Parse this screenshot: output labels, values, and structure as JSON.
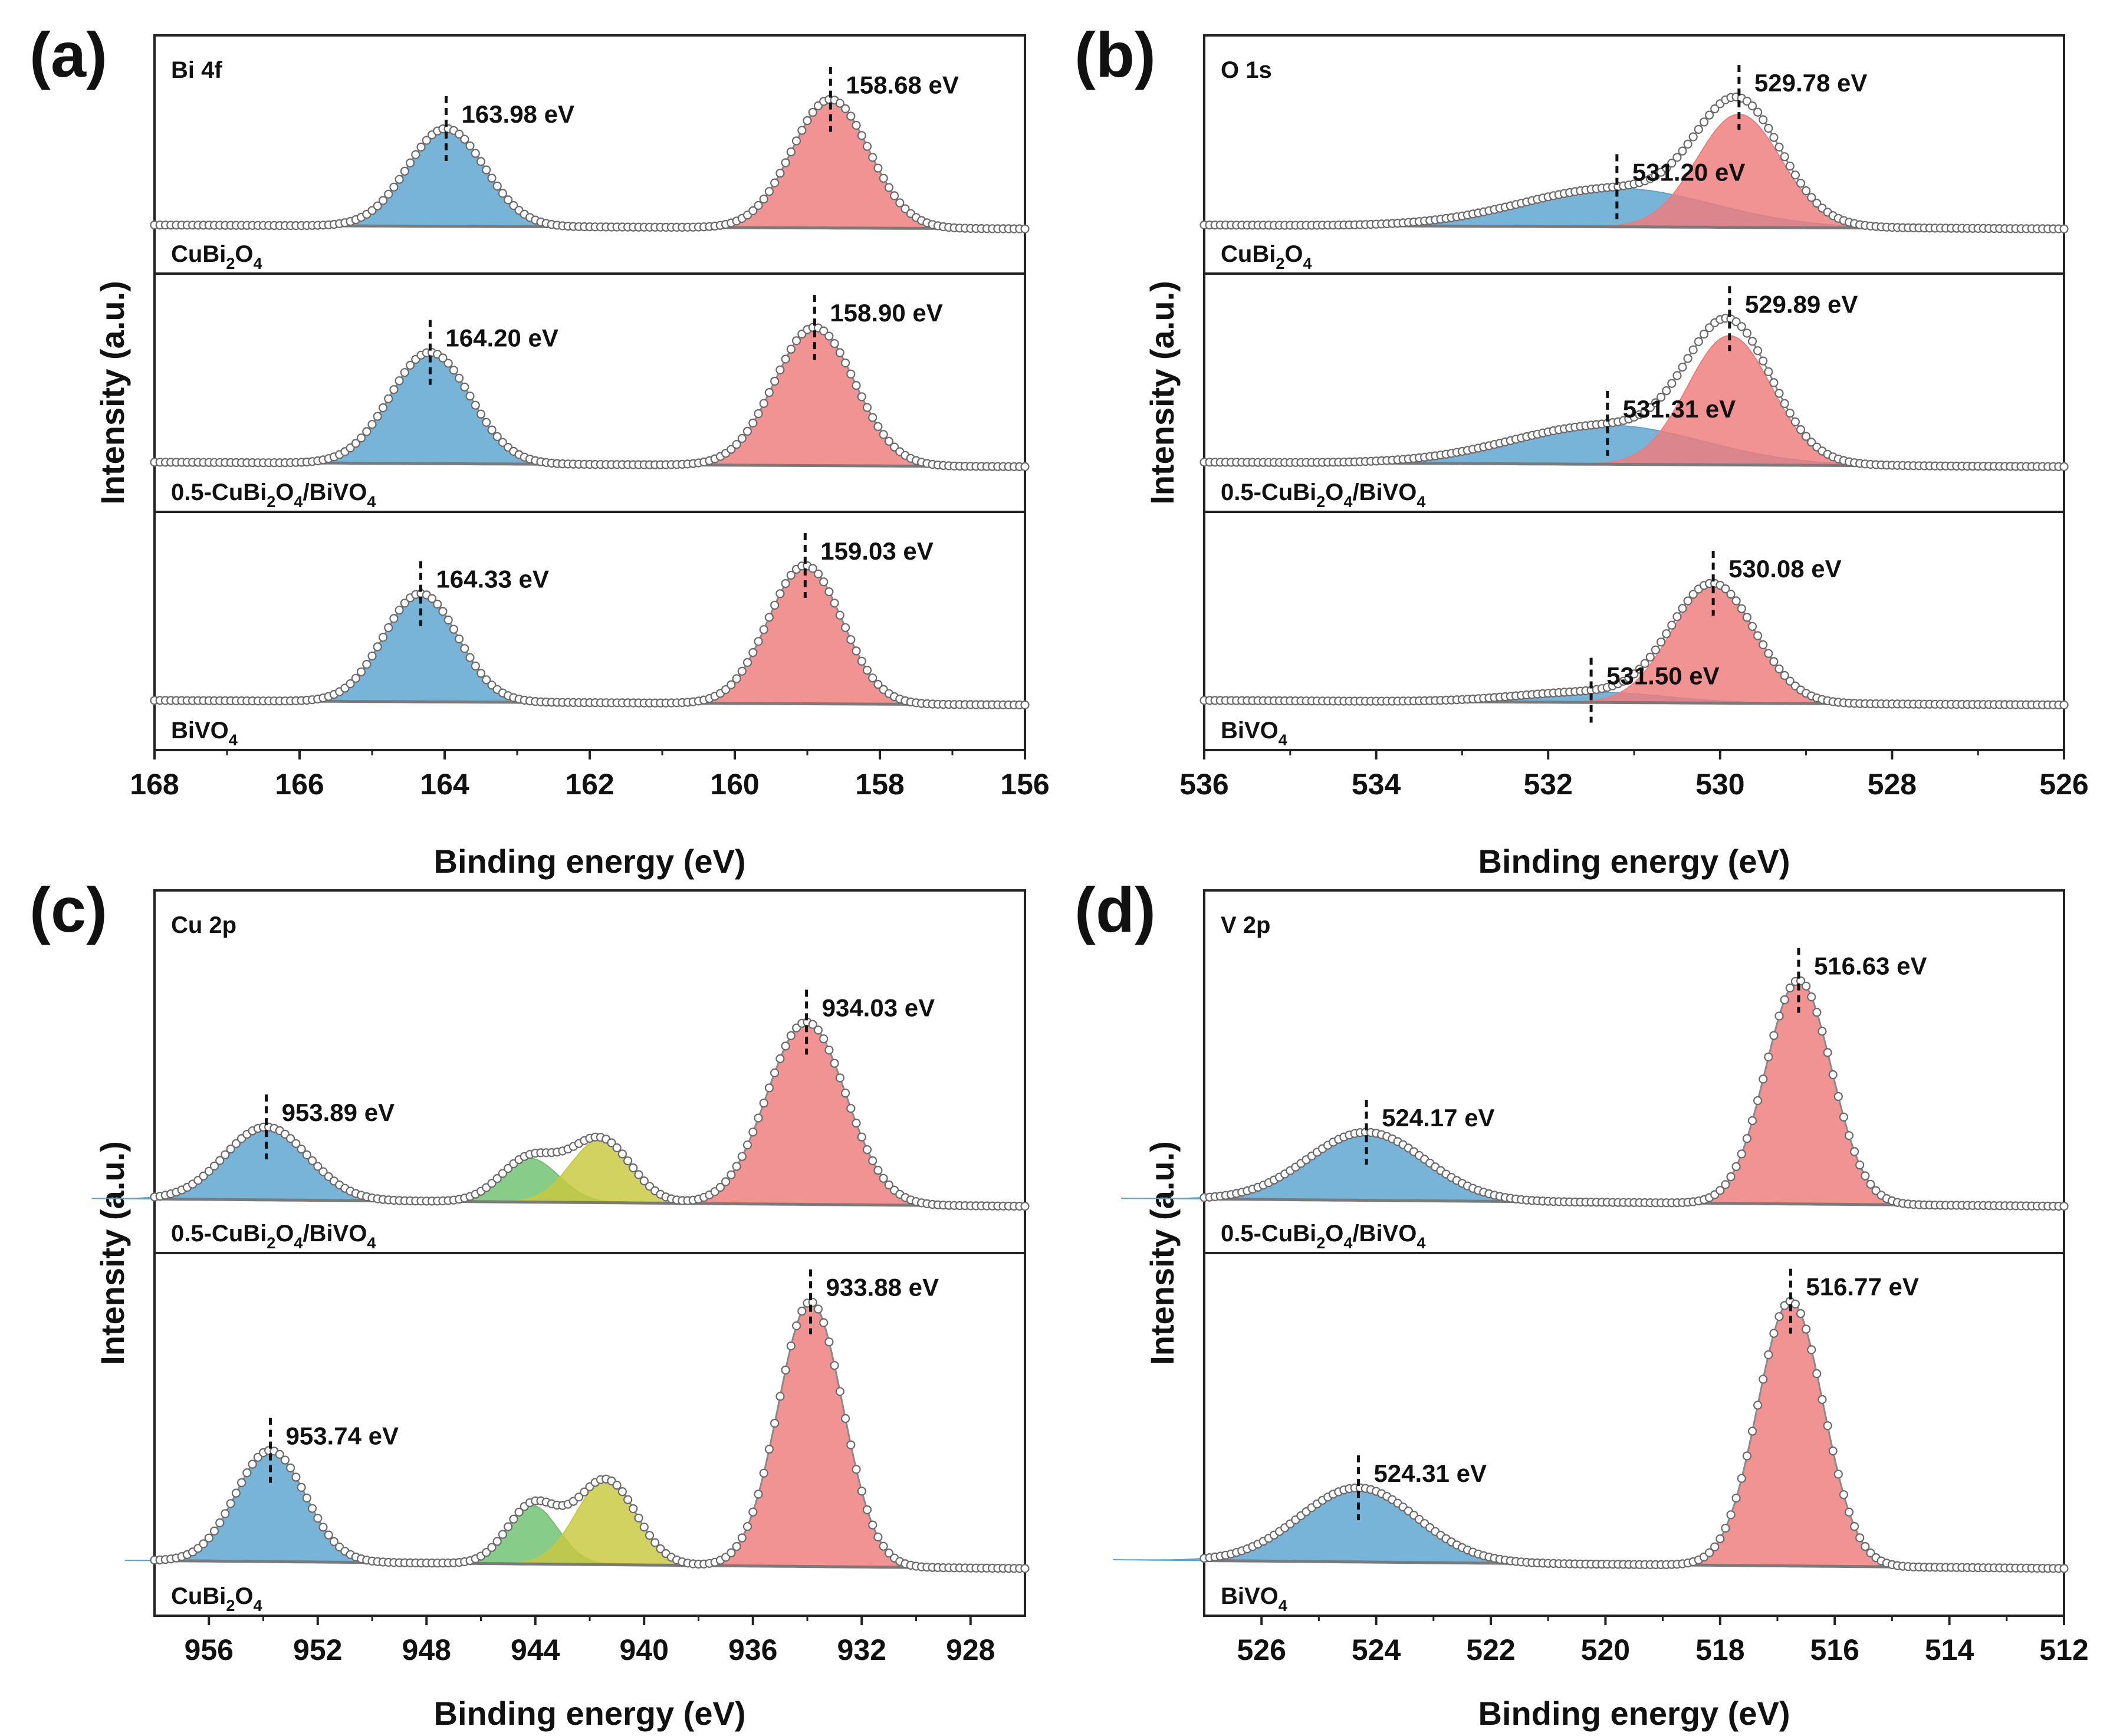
{
  "chart_data": [
    {
      "type": "line",
      "id": "a",
      "panel_label": "(a)",
      "title": "Bi 4f",
      "xlabel": "Binding energy (eV)",
      "ylabel": "Intensity (a.u.)",
      "xlim": [
        168,
        156
      ],
      "xticks": [
        168,
        166,
        164,
        162,
        160,
        158,
        156
      ],
      "reverse_x": true,
      "series": [
        {
          "name": "CuBi2O4",
          "label_base": [
            "CuBi",
            "2",
            "O",
            "4"
          ],
          "peaks": [
            {
              "center": 163.98,
              "amplitude": 0.76,
              "fwhm": 1.25,
              "color": "#5aa3d0",
              "label": "163.98 eV"
            },
            {
              "center": 158.68,
              "amplitude": 1.0,
              "fwhm": 1.25,
              "color": "#ef7b7b",
              "label": "158.68 eV"
            }
          ]
        },
        {
          "name": "0.5-CuBi2O4/BiVO4",
          "label_base": [
            "0.5-CuBi",
            "2",
            "O",
            "4",
            "/BiVO",
            "4"
          ],
          "peaks": [
            {
              "center": 164.2,
              "amplitude": 0.74,
              "fwhm": 1.3,
              "color": "#5aa3d0",
              "label": "164.20 eV"
            },
            {
              "center": 158.9,
              "amplitude": 0.92,
              "fwhm": 1.3,
              "color": "#ef7b7b",
              "label": "158.90 eV"
            }
          ]
        },
        {
          "name": "BiVO4",
          "label_base": [
            "BiVO",
            "4"
          ],
          "peaks": [
            {
              "center": 164.33,
              "amplitude": 0.72,
              "fwhm": 1.2,
              "color": "#5aa3d0",
              "label": "164.33 eV"
            },
            {
              "center": 159.03,
              "amplitude": 0.92,
              "fwhm": 1.2,
              "color": "#ef7b7b",
              "label": "159.03 eV"
            }
          ]
        }
      ]
    },
    {
      "type": "line",
      "id": "b",
      "panel_label": "(b)",
      "title": "O 1s",
      "xlabel": "Binding energy (eV)",
      "ylabel": "Intensity (a.u.)",
      "xlim": [
        536,
        526
      ],
      "xticks": [
        536,
        534,
        532,
        530,
        528,
        526
      ],
      "reverse_x": true,
      "series": [
        {
          "name": "CuBi2O4",
          "label_base": [
            "CuBi",
            "2",
            "O",
            "4"
          ],
          "peaks": [
            {
              "center": 531.2,
              "amplitude": 0.3,
              "fwhm": 2.6,
              "color": "#5aa3d0",
              "label": "531.20 eV"
            },
            {
              "center": 529.78,
              "amplitude": 0.88,
              "fwhm": 1.15,
              "color": "#ef7b7b",
              "label": "529.78 eV"
            }
          ]
        },
        {
          "name": "0.5-CuBi2O4/BiVO4",
          "label_base": [
            "0.5-CuBi",
            "2",
            "O",
            "4",
            "/BiVO",
            "4"
          ],
          "peaks": [
            {
              "center": 531.31,
              "amplitude": 0.26,
              "fwhm": 2.6,
              "color": "#5aa3d0",
              "label": "531.31 eV"
            },
            {
              "center": 529.89,
              "amplitude": 0.86,
              "fwhm": 1.15,
              "color": "#ef7b7b",
              "label": "529.89 eV"
            }
          ]
        },
        {
          "name": "BiVO4",
          "label_base": [
            "BiVO",
            "4"
          ],
          "peaks": [
            {
              "center": 531.5,
              "amplitude": 0.07,
              "fwhm": 2.0,
              "color": "#5aa3d0",
              "label": "531.50 eV"
            },
            {
              "center": 530.08,
              "amplitude": 0.78,
              "fwhm": 1.15,
              "color": "#ef7b7b",
              "label": "530.08 eV"
            }
          ]
        }
      ]
    },
    {
      "type": "line",
      "id": "c",
      "panel_label": "(c)",
      "title": "Cu 2p",
      "xlabel": "Binding energy (eV)",
      "ylabel": "Intensity (a.u.)",
      "xlim": [
        958,
        926
      ],
      "xticks": [
        956,
        952,
        948,
        944,
        940,
        936,
        932,
        928
      ],
      "reverse_x": true,
      "series": [
        {
          "name": "0.5-CuBi2O4/BiVO4",
          "label_base": [
            "0.5-CuBi",
            "2",
            "O",
            "4",
            "/BiVO",
            "4"
          ],
          "peaks": [
            {
              "center": 953.89,
              "amplitude": 0.3,
              "fwhm": 3.6,
              "color": "#5aa3d0",
              "label": "953.89 eV"
            },
            {
              "center": 944.2,
              "amplitude": 0.18,
              "fwhm": 2.5,
              "color": "#6cc16f",
              "label": ""
            },
            {
              "center": 941.6,
              "amplitude": 0.26,
              "fwhm": 2.6,
              "color": "#c8c83e",
              "label": ""
            },
            {
              "center": 934.03,
              "amplitude": 0.75,
              "fwhm": 3.4,
              "color": "#ef7b7b",
              "label": "934.03 eV"
            }
          ]
        },
        {
          "name": "CuBi2O4",
          "label_base": [
            "CuBi",
            "2",
            "O",
            "4"
          ],
          "peaks": [
            {
              "center": 953.74,
              "amplitude": 0.42,
              "fwhm": 3.0,
              "color": "#5aa3d0",
              "label": "953.74 eV"
            },
            {
              "center": 944.1,
              "amplitude": 0.22,
              "fwhm": 2.2,
              "color": "#6cc16f",
              "label": ""
            },
            {
              "center": 941.4,
              "amplitude": 0.32,
              "fwhm": 2.6,
              "color": "#c8c83e",
              "label": ""
            },
            {
              "center": 933.88,
              "amplitude": 1.0,
              "fwhm": 2.8,
              "color": "#ef7b7b",
              "label": "933.88 eV"
            }
          ]
        }
      ]
    },
    {
      "type": "line",
      "id": "d",
      "panel_label": "(d)",
      "title": "V 2p",
      "xlabel": "Binding energy (eV)",
      "ylabel": "Intensity (a.u.)",
      "xlim": [
        527,
        512
      ],
      "xticks": [
        526,
        524,
        522,
        520,
        518,
        516,
        514,
        512
      ],
      "reverse_x": true,
      "series": [
        {
          "name": "0.5-CuBi2O4/BiVO4",
          "label_base": [
            "0.5-CuBi",
            "2",
            "O",
            "4",
            "/BiVO",
            "4"
          ],
          "peaks": [
            {
              "center": 524.17,
              "amplitude": 0.28,
              "fwhm": 2.4,
              "color": "#5aa3d0",
              "label": "524.17 eV"
            },
            {
              "center": 516.63,
              "amplitude": 0.92,
              "fwhm": 1.35,
              "color": "#ef7b7b",
              "label": "516.63 eV"
            }
          ]
        },
        {
          "name": "BiVO4",
          "label_base": [
            "BiVO",
            "4"
          ],
          "peaks": [
            {
              "center": 524.31,
              "amplitude": 0.28,
              "fwhm": 2.4,
              "color": "#5aa3d0",
              "label": "524.31 eV"
            },
            {
              "center": 516.77,
              "amplitude": 1.0,
              "fwhm": 1.35,
              "color": "#ef7b7b",
              "label": "516.77 eV"
            }
          ]
        }
      ]
    }
  ]
}
